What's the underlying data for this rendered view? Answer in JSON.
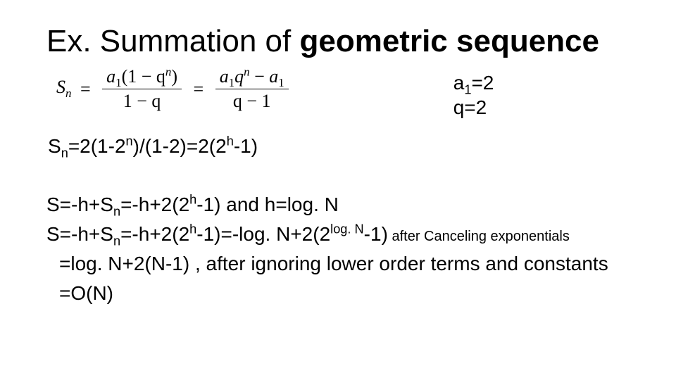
{
  "colors": {
    "background": "#ffffff",
    "text": "#000000"
  },
  "title": {
    "plain": "Ex. Summation of ",
    "bold": "geometric sequence",
    "fontsize": 44
  },
  "formula": {
    "lhs_var": "S",
    "lhs_sub": "n",
    "frac1": {
      "num_pre": "a",
      "num_sub": "1",
      "num_post": "(1 − q",
      "num_sup": "n",
      "num_close": ")",
      "den": "1 − q"
    },
    "frac2": {
      "num_a": "a",
      "num_a_sub": "1",
      "num_q": "q",
      "num_q_sup": "n",
      "num_minus": " − ",
      "num_b": "a",
      "num_b_sub": "1",
      "den": "q − 1"
    }
  },
  "params": {
    "a1_label": "a",
    "a1_sub": "1",
    "a1_val": "=2",
    "q_label": "q=2",
    "fontsize": 28
  },
  "sn_line": {
    "pre": "S",
    "pre_sub": "n",
    "mid1": "=2(1-2",
    "sup1": "n",
    "mid2": ")/(1-2)=2(2",
    "sup2": "h",
    "mid3": "-1)",
    "fontsize": 28
  },
  "deriv": {
    "l1": {
      "a": "S=-h+S",
      "a_sub": "n",
      "b": "=-h+2(2",
      "b_sup": "h",
      "c": "-1)  and h=log. N"
    },
    "l2": {
      "a": "S=-h+S",
      "a_sub": "n",
      "b": "=-h+2(2",
      "b_sup": "h",
      "c": "-1)=-log. N+2(2",
      "c_sup": "log. N",
      "d": "-1)",
      "annot": "  after Canceling exponentials"
    },
    "l3": "=log. N+2(N-1) , after ignoring lower order terms and constants",
    "l4": "=O(N)",
    "fontsize": 28,
    "annot_fontsize": 20
  }
}
